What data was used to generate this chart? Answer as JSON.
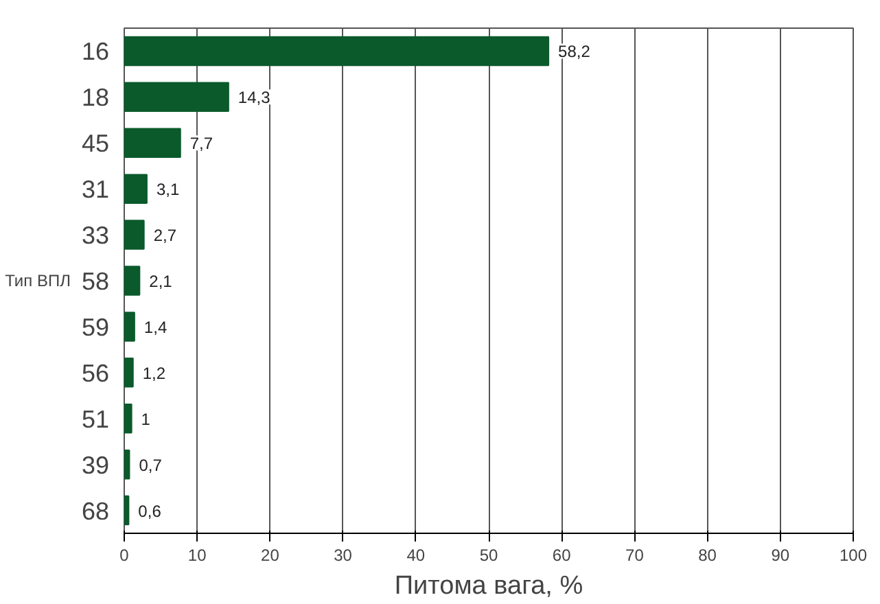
{
  "chart_data": {
    "type": "bar",
    "orientation": "horizontal",
    "ylabel": "Тип ВПЛ",
    "xlabel": "Питома вага, %",
    "categories": [
      "16",
      "18",
      "45",
      "31",
      "33",
      "58",
      "59",
      "56",
      "51",
      "39",
      "68"
    ],
    "values": [
      58.2,
      14.3,
      7.7,
      3.1,
      2.7,
      2.1,
      1.4,
      1.2,
      1,
      0.7,
      0.6
    ],
    "value_labels": [
      "58,2",
      "14,3",
      "7,7",
      "3,1",
      "2,7",
      "2,1",
      "1,4",
      "1,2",
      "1",
      "0,7",
      "0,6"
    ],
    "color": "#0b5a2c",
    "xlim": [
      0,
      100
    ],
    "xticks": [
      0,
      10,
      20,
      30,
      40,
      50,
      60,
      70,
      80,
      90,
      100
    ],
    "grid": "x"
  }
}
